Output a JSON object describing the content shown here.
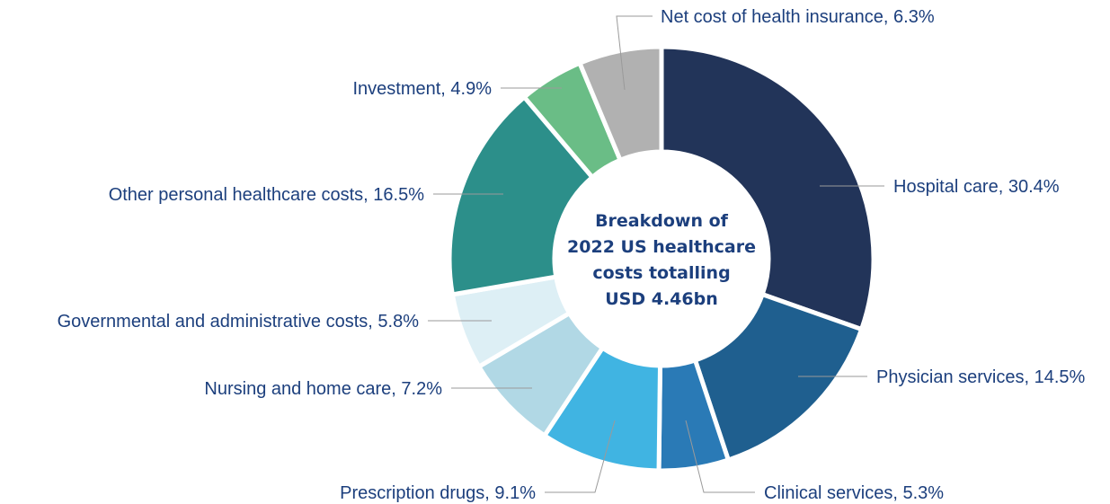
{
  "chart_data": {
    "type": "pie",
    "donut": true,
    "title": [
      "Breakdown of",
      "2022 US healthcare",
      "costs totalling",
      "USD 4.46bn"
    ],
    "unit": "%",
    "start": "top, clockwise",
    "slices": [
      {
        "label": "Hospital care",
        "value": 30.4,
        "text": "Hospital care, 30.4%",
        "color": "#223459"
      },
      {
        "label": "Physician services",
        "value": 14.5,
        "text": "Physician services, 14.5%",
        "color": "#1f5f8f"
      },
      {
        "label": "Clinical services",
        "value": 5.3,
        "text": "Clinical services, 5.3%",
        "color": "#2a7ab6"
      },
      {
        "label": "Prescription drugs",
        "value": 9.1,
        "text": "Prescription drugs, 9.1%",
        "color": "#40b4e2"
      },
      {
        "label": "Nursing and home care",
        "value": 7.2,
        "text": "Nursing and home care, 7.2%",
        "color": "#b1d8e5"
      },
      {
        "label": "Governmental and administrative costs",
        "value": 5.8,
        "text": "Governmental and administrative costs, 5.8%",
        "color": "#ddeff5"
      },
      {
        "label": "Other personal healthcare costs",
        "value": 16.5,
        "text": "Other personal healthcare costs, 16.5%",
        "color": "#2c8f8a"
      },
      {
        "label": "Investment",
        "value": 4.9,
        "text": "Investment, 4.9%",
        "color": "#6abd86"
      },
      {
        "label": "Net cost of health insurance",
        "value": 6.3,
        "text": "Net cost of health insurance, 6.3%",
        "color": "#b1b1b1"
      }
    ]
  }
}
